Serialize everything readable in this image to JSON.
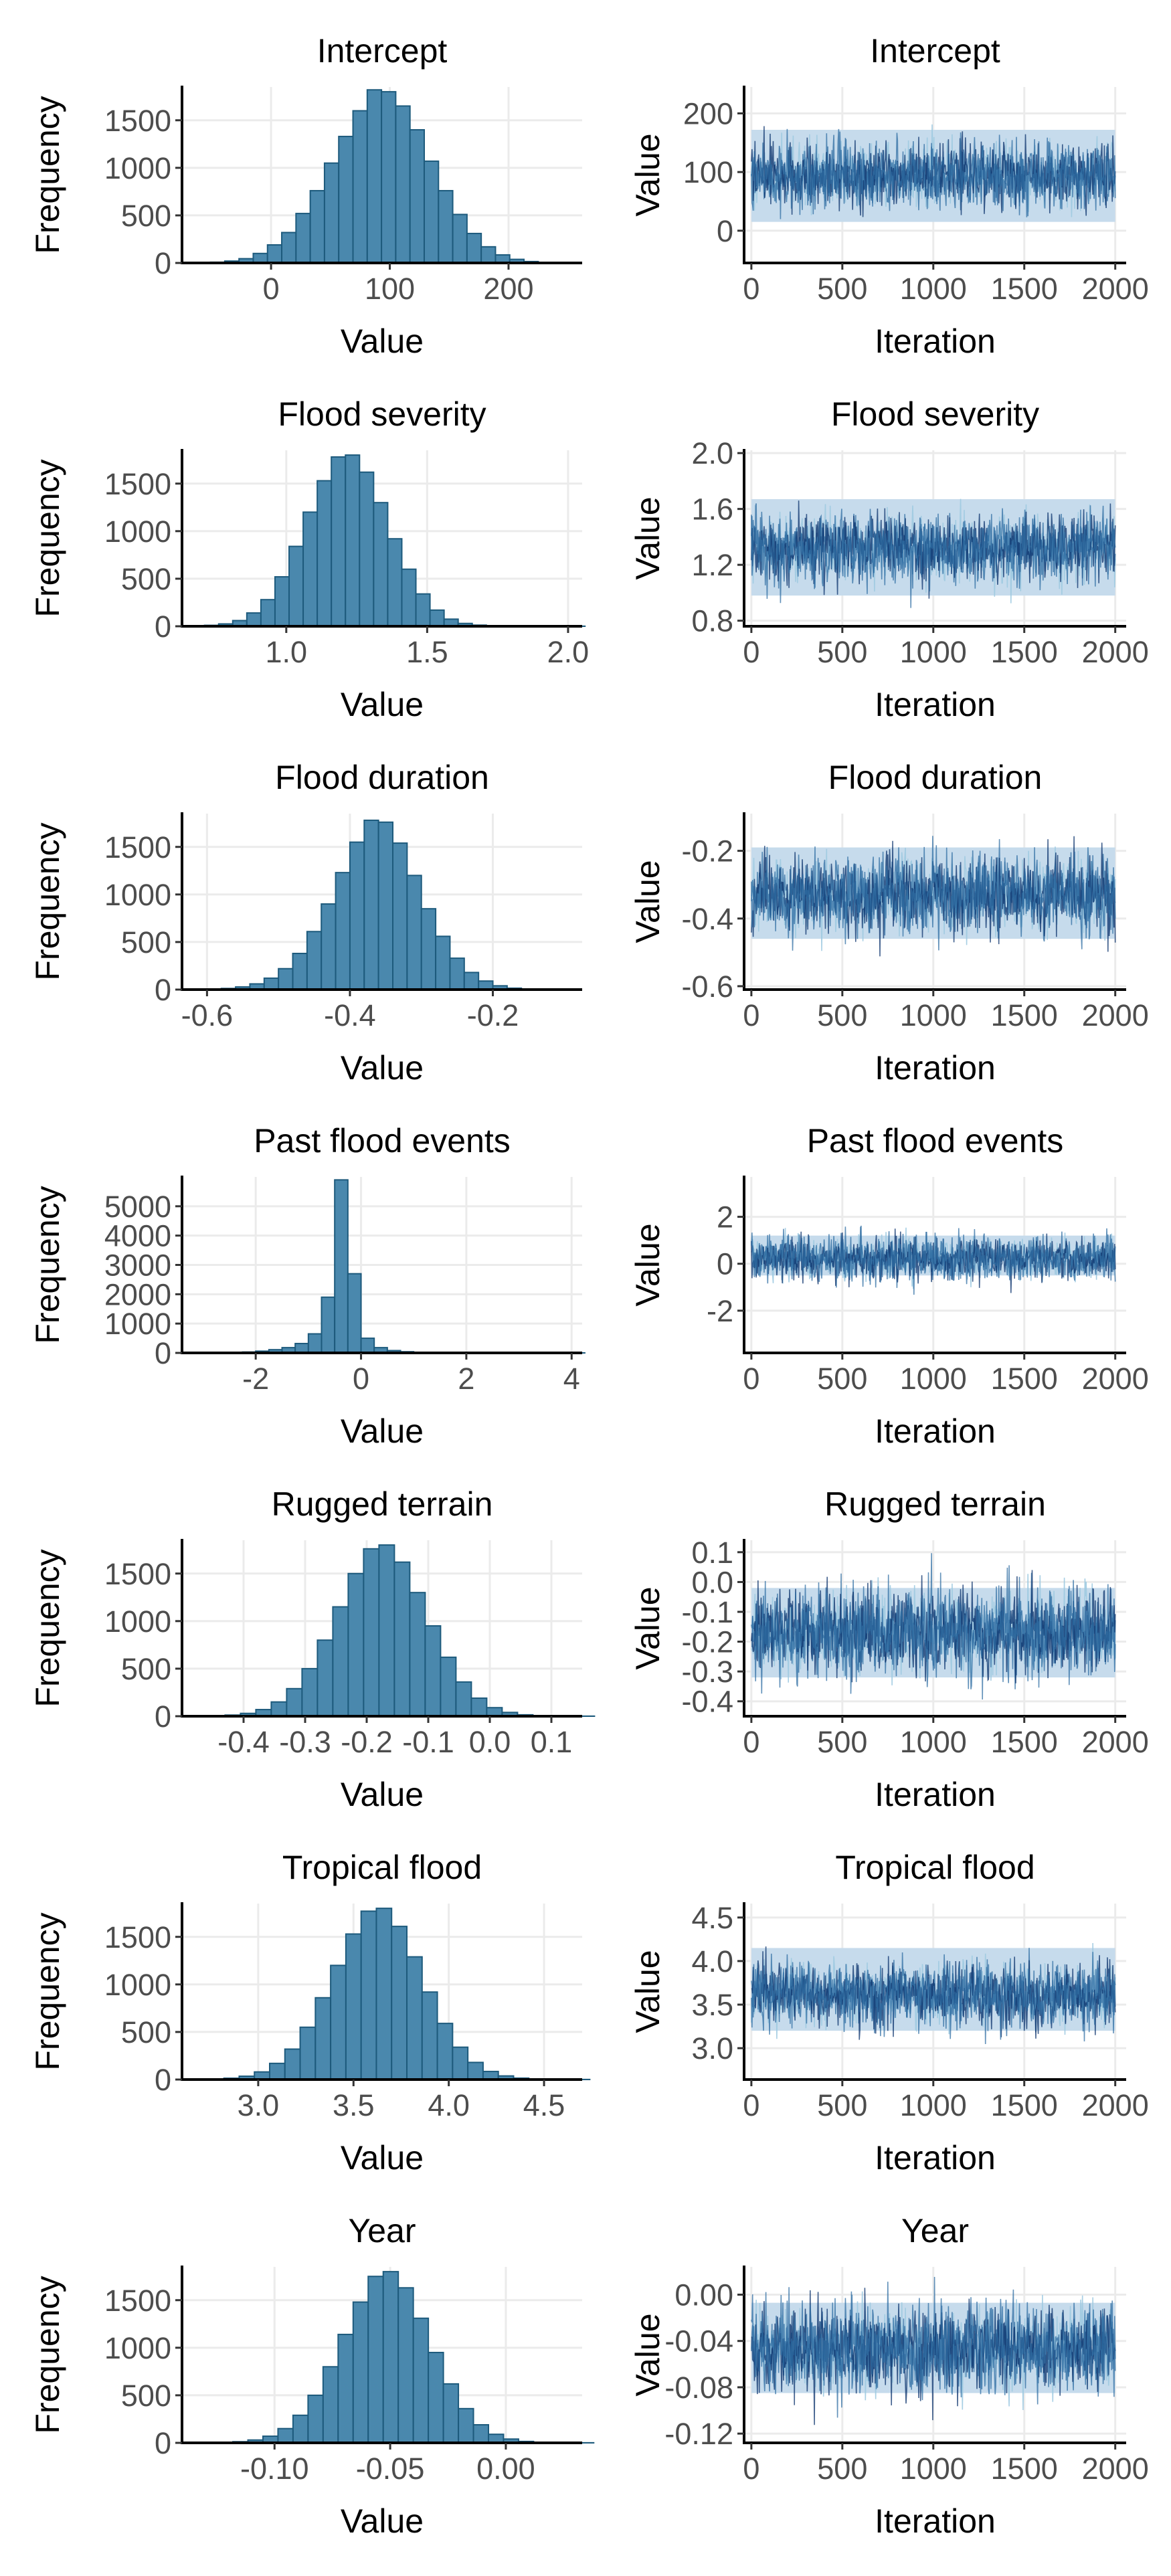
{
  "colors": {
    "hist_fill": "#4a88ad",
    "hist_border": "#1d5a7c",
    "trace_band": "#c6dbec",
    "chain_dark": "#08306b",
    "chain_mid": "#2f6da3",
    "chain_light": "#9ecae1",
    "grid": "#ebebeb",
    "axis": "#000000",
    "tick_text": "#4d4d4d"
  },
  "chart_data": [
    {
      "type": "bar",
      "title": "Intercept",
      "xlabel": "Value",
      "ylabel": "Frequency",
      "xlim": [
        -75,
        262
      ],
      "ylim": [
        0,
        1850
      ],
      "xticks": [
        "0",
        "100",
        "200"
      ],
      "yticks": [
        "0",
        "500",
        "1000",
        "1500"
      ],
      "grid": true,
      "bins": {
        "start": -63,
        "width": 12,
        "counts": [
          3,
          8,
          20,
          45,
          100,
          190,
          320,
          520,
          760,
          1050,
          1330,
          1600,
          1820,
          1800,
          1650,
          1400,
          1070,
          760,
          510,
          310,
          170,
          85,
          38,
          15,
          6,
          2,
          1
        ]
      }
    },
    {
      "type": "line",
      "title": "Intercept",
      "xlabel": "Iteration",
      "ylabel": "Value",
      "xlim": [
        -40,
        2060
      ],
      "ylim": [
        -55,
        245
      ],
      "xticks": [
        "0",
        "500",
        "1000",
        "1500",
        "2000"
      ],
      "yticks": [
        "0",
        "100",
        "200"
      ],
      "grid": true,
      "trace": {
        "iterations": [
          0,
          2000
        ],
        "center": 93,
        "spread": 28,
        "min": -45,
        "max": 235,
        "band_low": 15,
        "band_high": 172,
        "chains": 4
      }
    },
    {
      "type": "bar",
      "title": "Flood severity",
      "xlabel": "Value",
      "ylabel": "Frequency",
      "xlim": [
        0.63,
        2.05
      ],
      "ylim": [
        0,
        1850
      ],
      "xticks": [
        "1.0",
        "1.5",
        "2.0"
      ],
      "yticks": [
        "0",
        "500",
        "1000",
        "1500"
      ],
      "grid": true,
      "bins": {
        "start": 0.66,
        "width": 0.05,
        "counts": [
          3,
          10,
          25,
          60,
          140,
          280,
          520,
          840,
          1200,
          1530,
          1780,
          1800,
          1620,
          1300,
          920,
          600,
          340,
          170,
          75,
          30,
          12,
          4,
          2,
          1,
          1,
          1,
          1,
          1
        ]
      }
    },
    {
      "type": "line",
      "title": "Flood severity",
      "xlabel": "Iteration",
      "ylabel": "Value",
      "xlim": [
        -40,
        2060
      ],
      "ylim": [
        0.76,
        2.02
      ],
      "xticks": [
        "0",
        "500",
        "1000",
        "1500",
        "2000"
      ],
      "yticks": [
        "0.8",
        "1.2",
        "1.6",
        "2.0"
      ],
      "grid": true,
      "trace": {
        "iterations": [
          0,
          2000
        ],
        "center": 1.32,
        "spread": 0.12,
        "min": 0.78,
        "max": 1.98,
        "band_low": 0.98,
        "band_high": 1.67,
        "chains": 4
      }
    },
    {
      "type": "bar",
      "title": "Flood duration",
      "xlabel": "Value",
      "ylabel": "Frequency",
      "xlim": [
        -0.635,
        -0.075
      ],
      "ylim": [
        0,
        1850
      ],
      "xticks": [
        "-0.6",
        "-0.4",
        "-0.2"
      ],
      "yticks": [
        "0",
        "500",
        "1000",
        "1500"
      ],
      "grid": true,
      "bins": {
        "start": -0.62,
        "width": 0.02,
        "counts": [
          2,
          5,
          12,
          28,
          60,
          120,
          220,
          380,
          610,
          900,
          1230,
          1550,
          1780,
          1760,
          1540,
          1200,
          850,
          560,
          330,
          180,
          90,
          40,
          15,
          6,
          2,
          1
        ]
      }
    },
    {
      "type": "line",
      "title": "Flood duration",
      "xlabel": "Iteration",
      "ylabel": "Value",
      "xlim": [
        -40,
        2060
      ],
      "ylim": [
        -0.61,
        -0.09
      ],
      "xticks": [
        "0",
        "500",
        "1000",
        "1500",
        "2000"
      ],
      "yticks": [
        "-0.6",
        "-0.4",
        "-0.2"
      ],
      "grid": true,
      "trace": {
        "iterations": [
          0,
          2000
        ],
        "center": -0.33,
        "spread": 0.055,
        "min": -0.59,
        "max": -0.1,
        "band_low": -0.46,
        "band_high": -0.19,
        "chains": 4
      }
    },
    {
      "type": "bar",
      "title": "Past flood events",
      "xlabel": "Value",
      "ylabel": "Frequency",
      "xlim": [
        -3.4,
        4.2
      ],
      "ylim": [
        0,
        6000
      ],
      "xticks": [
        "-2",
        "0",
        "2",
        "4"
      ],
      "yticks": [
        "0",
        "1000",
        "2000",
        "3000",
        "4000",
        "5000"
      ],
      "grid": true,
      "bins": {
        "start": -3.25,
        "width": 0.25,
        "counts": [
          2,
          4,
          8,
          15,
          30,
          60,
          110,
          180,
          320,
          650,
          1900,
          5900,
          2700,
          500,
          180,
          80,
          40,
          20,
          10,
          5,
          3,
          2,
          1,
          1,
          1,
          1,
          1,
          1,
          1,
          1
        ]
      }
    },
    {
      "type": "line",
      "title": "Past flood events",
      "xlabel": "Iteration",
      "ylabel": "Value",
      "xlim": [
        -40,
        2060
      ],
      "ylim": [
        -3.8,
        3.7
      ],
      "xticks": [
        "0",
        "500",
        "1000",
        "1500",
        "2000"
      ],
      "yticks": [
        "-2",
        "0",
        "2"
      ],
      "grid": true,
      "trace": {
        "iterations": [
          0,
          2000
        ],
        "center": 0.25,
        "spread": 0.45,
        "min": -3.1,
        "max": 3.4,
        "band_low": -0.5,
        "band_high": 1.2,
        "chains": 4
      }
    },
    {
      "type": "bar",
      "title": "Rugged terrain",
      "xlabel": "Value",
      "ylabel": "Frequency",
      "xlim": [
        -0.5,
        0.15
      ],
      "ylim": [
        0,
        1850
      ],
      "xticks": [
        "-0.4",
        "-0.3",
        "-0.2",
        "-0.1",
        "0.0",
        "0.1"
      ],
      "yticks": [
        "0",
        "500",
        "1000",
        "1500"
      ],
      "grid": true,
      "bins": {
        "start": -0.48,
        "width": 0.025,
        "counts": [
          2,
          5,
          12,
          30,
          70,
          150,
          290,
          500,
          800,
          1150,
          1500,
          1760,
          1800,
          1620,
          1300,
          950,
          620,
          360,
          190,
          90,
          40,
          15,
          6,
          2,
          1,
          1
        ]
      }
    },
    {
      "type": "line",
      "title": "Rugged terrain",
      "xlabel": "Iteration",
      "ylabel": "Value",
      "xlim": [
        -40,
        2060
      ],
      "ylim": [
        -0.45,
        0.14
      ],
      "xticks": [
        "0",
        "500",
        "1000",
        "1500",
        "2000"
      ],
      "yticks": [
        "-0.4",
        "-0.3",
        "-0.2",
        "-0.1",
        "0.0",
        "0.1"
      ],
      "grid": true,
      "trace": {
        "iterations": [
          0,
          2000
        ],
        "center": -0.17,
        "spread": 0.07,
        "min": -0.43,
        "max": 0.12,
        "band_low": -0.32,
        "band_high": -0.02,
        "chains": 4
      }
    },
    {
      "type": "bar",
      "title": "Tropical flood",
      "xlabel": "Value",
      "ylabel": "Frequency",
      "xlim": [
        2.6,
        4.7
      ],
      "ylim": [
        0,
        1850
      ],
      "xticks": [
        "3.0",
        "3.5",
        "4.0",
        "4.5"
      ],
      "yticks": [
        "0",
        "500",
        "1000",
        "1500"
      ],
      "grid": true,
      "bins": {
        "start": 2.66,
        "width": 0.08,
        "counts": [
          2,
          5,
          14,
          35,
          80,
          170,
          320,
          550,
          860,
          1200,
          1530,
          1770,
          1800,
          1610,
          1290,
          920,
          590,
          340,
          180,
          85,
          38,
          15,
          6,
          2,
          1,
          1
        ]
      }
    },
    {
      "type": "line",
      "title": "Tropical flood",
      "xlabel": "Iteration",
      "ylabel": "Value",
      "xlim": [
        -40,
        2060
      ],
      "ylim": [
        2.64,
        4.66
      ],
      "xticks": [
        "0",
        "500",
        "1000",
        "1500",
        "2000"
      ],
      "yticks": [
        "3.0",
        "3.5",
        "4.0",
        "4.5"
      ],
      "grid": true,
      "trace": {
        "iterations": [
          0,
          2000
        ],
        "center": 3.62,
        "spread": 0.18,
        "min": 2.75,
        "max": 4.55,
        "band_low": 3.2,
        "band_high": 4.15,
        "chains": 4
      }
    },
    {
      "type": "bar",
      "title": "Year",
      "xlabel": "Value",
      "ylabel": "Frequency",
      "xlim": [
        -0.14,
        0.033
      ],
      "ylim": [
        0,
        1850
      ],
      "xticks": [
        "-0.10",
        "-0.05",
        "0.00"
      ],
      "yticks": [
        "0",
        "500",
        "1000",
        "1500"
      ],
      "grid": true,
      "bins": {
        "start": -0.131,
        "width": 0.0065,
        "counts": [
          2,
          5,
          12,
          30,
          70,
          150,
          290,
          500,
          800,
          1140,
          1480,
          1750,
          1800,
          1630,
          1310,
          950,
          620,
          360,
          190,
          90,
          40,
          15,
          6,
          2,
          1,
          1
        ]
      }
    },
    {
      "type": "line",
      "title": "Year",
      "xlabel": "Iteration",
      "ylabel": "Value",
      "xlim": [
        -40,
        2060
      ],
      "ylim": [
        -0.128,
        0.024
      ],
      "xticks": [
        "0",
        "500",
        "1000",
        "1500",
        "2000"
      ],
      "yticks": [
        "0.00",
        "-0.04",
        "-0.08",
        "-0.12"
      ],
      "grid": true,
      "trace": {
        "iterations": [
          0,
          2000
        ],
        "center": -0.047,
        "spread": 0.018,
        "min": -0.125,
        "max": 0.02,
        "band_low": -0.085,
        "band_high": -0.007,
        "chains": 4
      }
    }
  ]
}
